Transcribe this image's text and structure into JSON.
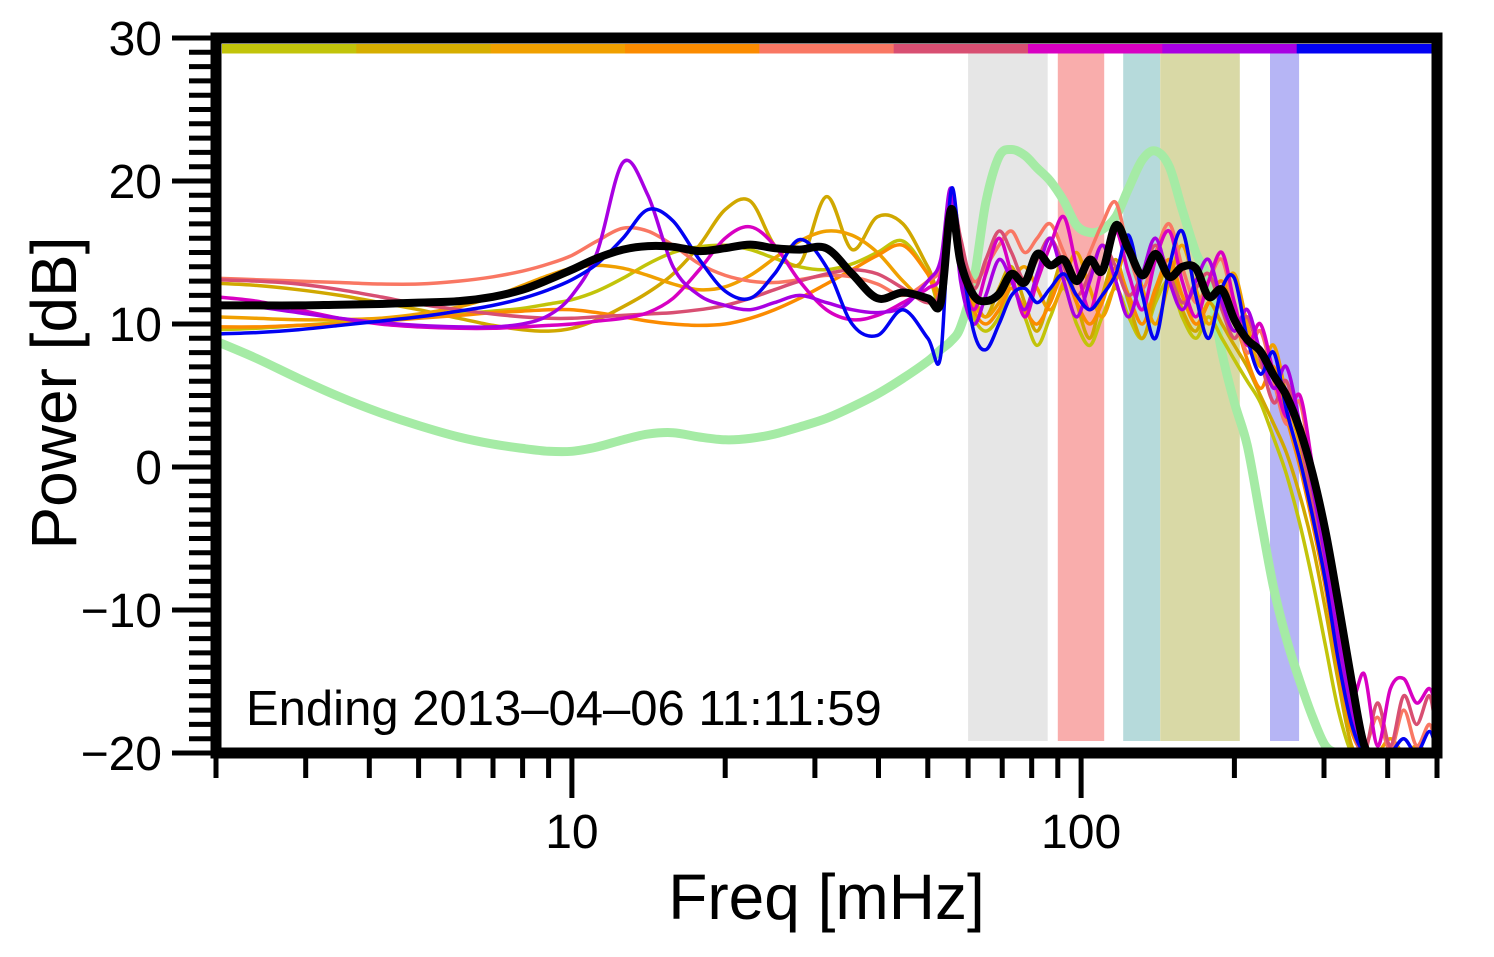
{
  "chart_data": {
    "type": "line",
    "title": "",
    "xlabel": "Freq [mHz]",
    "ylabel": "Power [dB]",
    "annotation": "Ending 2013–04–06 11:11:59",
    "x_scale": "log",
    "xlim": [
      2,
      500
    ],
    "ylim": [
      -20,
      30
    ],
    "grid": false,
    "legend": "none",
    "x_major_ticks": [
      10,
      100
    ],
    "x_major_labels": [
      "10",
      "100"
    ],
    "x_minor_ticks": [
      2,
      3,
      4,
      5,
      6,
      7,
      8,
      9,
      20,
      30,
      40,
      50,
      60,
      70,
      80,
      90,
      200,
      300,
      400,
      500
    ],
    "y_major_ticks": [
      30,
      20,
      10,
      0,
      -10,
      -20
    ],
    "y_major_labels": [
      "30",
      "20",
      "10",
      "0",
      "−10",
      "−20"
    ],
    "y_minor_step": 1,
    "top_bar_segments": [
      {
        "name": "interval-1",
        "color": "#c2c40a"
      },
      {
        "name": "interval-2",
        "color": "#d6ae00"
      },
      {
        "name": "interval-3",
        "color": "#f0a000"
      },
      {
        "name": "interval-4",
        "color": "#fb8b00"
      },
      {
        "name": "interval-5",
        "color": "#f97763"
      },
      {
        "name": "interval-6",
        "color": "#d84f72"
      },
      {
        "name": "interval-7",
        "color": "#d800c2"
      },
      {
        "name": "interval-8",
        "color": "#a800e2"
      },
      {
        "name": "interval-9",
        "color": "#0202f2"
      }
    ],
    "vertical_bands": [
      {
        "name": "gray",
        "f_range": [
          60,
          86
        ],
        "color": "#e6e6e6"
      },
      {
        "name": "pink",
        "f_range": [
          90,
          111
        ],
        "color": "#f9adac"
      },
      {
        "name": "teal",
        "f_range": [
          121,
          143
        ],
        "color": "#b6dadb"
      },
      {
        "name": "olive",
        "f_range": [
          143,
          205
        ],
        "color": "#d9d9a6"
      },
      {
        "name": "lavender",
        "f_range": [
          235,
          268
        ],
        "color": "#b6b5f5"
      }
    ],
    "x": [
      2,
      2.4,
      2.9,
      3.5,
      4.2,
      5,
      6,
      7,
      8,
      9,
      10,
      11.2,
      12.6,
      14.1,
      15.8,
      17.8,
      20,
      22.4,
      25,
      28,
      31.6,
      35.5,
      39.8,
      44.7,
      50,
      53,
      55.5,
      58,
      61.5,
      65,
      69,
      73,
      77.5,
      82,
      87,
      92.5,
      98,
      104,
      110,
      117,
      124,
      132,
      140,
      149,
      158,
      168,
      178,
      189,
      200,
      212,
      225,
      239,
      253,
      269,
      285,
      302,
      320,
      340,
      360,
      382,
      405,
      430,
      456,
      483,
      500
    ],
    "series": [
      {
        "name": "green-background",
        "color": "#a5eba5",
        "width": 9,
        "y": [
          8.8,
          7.6,
          6.2,
          4.9,
          3.8,
          2.9,
          2.1,
          1.6,
          1.3,
          1.1,
          1.1,
          1.4,
          1.9,
          2.3,
          2.4,
          2.1,
          1.9,
          2.0,
          2.3,
          2.8,
          3.4,
          4.2,
          5.1,
          6.2,
          7.4,
          8.2,
          8.8,
          9.8,
          13.0,
          18.5,
          21.7,
          22.2,
          21.8,
          20.9,
          20.0,
          18.6,
          16.9,
          16.4,
          16.6,
          17.5,
          19.5,
          21.5,
          22.1,
          21.0,
          18.0,
          15.0,
          13.0,
          8.0,
          4.5,
          1.5,
          -3.5,
          -8.5,
          -12.0,
          -15.0,
          -17.5,
          -19.5,
          -20,
          -20,
          -20,
          -20,
          -20,
          -20,
          -20,
          -20,
          -20
        ]
      },
      {
        "name": "chartreuse",
        "color": "#c2c40a",
        "width": 3.5,
        "y": [
          9.6,
          9.7,
          9.9,
          10.1,
          10.3,
          10.5,
          10.7,
          10.9,
          11.1,
          11.4,
          11.7,
          12.3,
          13.2,
          14.2,
          15.0,
          15.4,
          15.5,
          15.2,
          14.6,
          14.0,
          13.8,
          14.2,
          15.0,
          15.8,
          13.5,
          11.5,
          17.8,
          13.5,
          10.5,
          9.5,
          10.5,
          12.5,
          10.5,
          8.5,
          10.5,
          12.5,
          10.0,
          8.5,
          10.5,
          12.5,
          10.5,
          9.0,
          11.5,
          13.0,
          10.5,
          9.0,
          10.5,
          9.0,
          7.5,
          6.0,
          4.5,
          2.0,
          -0.5,
          -4.0,
          -8.0,
          -12.5,
          -17.0,
          -20,
          -20,
          -20,
          -20,
          -20,
          -20,
          -20,
          -20
        ]
      },
      {
        "name": "gold",
        "color": "#d0a800",
        "width": 3.5,
        "y": [
          12.85,
          12.7,
          12.4,
          12.0,
          11.5,
          11.0,
          10.4,
          9.9,
          9.6,
          9.5,
          9.7,
          10.3,
          11.2,
          12.2,
          13.5,
          15.5,
          18.0,
          18.6,
          15.5,
          14.2,
          18.9,
          15.2,
          17.5,
          17.0,
          14.0,
          12.5,
          18.5,
          15.0,
          12.0,
          10.5,
          12.5,
          14.0,
          11.5,
          9.5,
          12.0,
          14.5,
          11.5,
          9.0,
          12.0,
          14.5,
          11.5,
          9.0,
          12.0,
          14.0,
          11.0,
          9.5,
          11.5,
          10.0,
          8.5,
          7.0,
          5.0,
          3.0,
          1.0,
          -2.0,
          -5.5,
          -10.0,
          -15.0,
          -19.5,
          -20,
          -20,
          -20,
          -20,
          -20,
          -20,
          -20
        ]
      },
      {
        "name": "orange",
        "color": "#f0a000",
        "width": 3.5,
        "y": [
          10.5,
          10.4,
          10.3,
          10.3,
          10.4,
          10.7,
          11.2,
          11.9,
          12.7,
          13.4,
          13.9,
          14.1,
          13.9,
          13.4,
          12.8,
          12.4,
          12.6,
          13.4,
          14.6,
          15.8,
          16.5,
          16.2,
          15.0,
          13.0,
          11.5,
          12.5,
          18.0,
          14.5,
          11.5,
          10.5,
          11.5,
          13.0,
          14.0,
          12.5,
          11.0,
          13.0,
          15.0,
          12.5,
          10.5,
          13.0,
          15.5,
          12.5,
          10.0,
          13.0,
          15.5,
          12.5,
          10.0,
          12.0,
          13.5,
          10.0,
          7.0,
          8.5,
          5.0,
          1.5,
          -2.5,
          -7.0,
          -12.5,
          -17.5,
          -20,
          -20,
          -19.0,
          -20,
          -19.5,
          -20,
          -20
        ]
      },
      {
        "name": "dark-orange",
        "color": "#fb8b00",
        "width": 3.5,
        "y": [
          9.8,
          9.8,
          9.9,
          10.0,
          10.2,
          10.4,
          10.6,
          10.8,
          10.9,
          11.0,
          11.0,
          10.8,
          10.5,
          10.2,
          10.0,
          9.9,
          10.0,
          10.4,
          11.0,
          11.8,
          12.8,
          13.8,
          14.8,
          15.5,
          13.5,
          12.0,
          18.2,
          14.0,
          11.0,
          10.0,
          11.0,
          12.5,
          11.0,
          10.0,
          11.5,
          13.5,
          11.5,
          10.0,
          11.5,
          14.0,
          12.0,
          10.0,
          12.5,
          14.5,
          12.0,
          10.0,
          11.5,
          13.0,
          10.5,
          7.5,
          5.5,
          7.0,
          3.5,
          0.0,
          -4.0,
          -8.5,
          -14.0,
          -18.5,
          -20,
          -20,
          -20,
          -20,
          -20,
          -20,
          -20
        ]
      },
      {
        "name": "salmon",
        "color": "#f97763",
        "width": 3.5,
        "y": [
          13.2,
          13.1,
          13.0,
          12.9,
          12.8,
          12.8,
          13.0,
          13.3,
          13.7,
          14.2,
          14.8,
          15.8,
          16.7,
          16.5,
          15.5,
          14.2,
          13.4,
          13.0,
          12.9,
          13.1,
          13.4,
          13.3,
          12.8,
          12.0,
          13.0,
          14.0,
          18.3,
          15.5,
          13.0,
          14.0,
          15.5,
          16.5,
          15.0,
          16.0,
          17.0,
          15.0,
          13.0,
          15.0,
          17.0,
          18.5,
          15.0,
          12.5,
          15.0,
          17.0,
          14.0,
          11.5,
          13.0,
          14.5,
          11.0,
          8.0,
          9.5,
          6.0,
          3.0,
          4.5,
          -1.0,
          -6.0,
          -11.5,
          -17.0,
          -19.5,
          -17.5,
          -19.8,
          -17.0,
          -19.5,
          -18.0,
          -20
        ]
      },
      {
        "name": "rose",
        "color": "#d84f72",
        "width": 3.5,
        "y": [
          13.1,
          13.0,
          12.8,
          12.4,
          11.9,
          11.4,
          11.0,
          10.7,
          10.5,
          10.4,
          10.4,
          10.5,
          10.6,
          10.7,
          10.8,
          11.0,
          11.3,
          11.8,
          12.4,
          13.0,
          13.5,
          13.8,
          13.5,
          12.5,
          11.5,
          12.5,
          18.8,
          16.0,
          12.5,
          14.5,
          16.5,
          15.0,
          13.0,
          14.5,
          16.0,
          14.0,
          12.0,
          13.5,
          15.5,
          14.0,
          12.0,
          13.5,
          15.5,
          13.5,
          11.5,
          12.5,
          13.5,
          11.0,
          9.0,
          10.5,
          7.5,
          4.5,
          6.0,
          2.0,
          -2.5,
          -7.5,
          -13.0,
          -18.0,
          -20,
          -16.5,
          -19.5,
          -16.0,
          -18.0,
          -16.0,
          -19.0
        ]
      },
      {
        "name": "magenta",
        "color": "#d800c2",
        "width": 3.5,
        "y": [
          11.9,
          11.6,
          11.0,
          10.4,
          10.0,
          9.8,
          9.7,
          9.7,
          9.8,
          9.9,
          10.0,
          10.2,
          10.4,
          10.8,
          11.8,
          13.8,
          16.0,
          16.8,
          15.5,
          13.0,
          11.0,
          10.3,
          10.6,
          11.5,
          12.5,
          13.5,
          19.0,
          14.0,
          11.0,
          13.5,
          16.0,
          13.5,
          10.5,
          13.0,
          15.5,
          17.5,
          14.0,
          11.0,
          14.0,
          16.5,
          13.5,
          11.0,
          14.5,
          16.5,
          13.0,
          10.5,
          13.0,
          15.0,
          11.5,
          8.5,
          10.0,
          6.5,
          3.5,
          5.0,
          0.0,
          -5.0,
          -10.5,
          -16.0,
          -14.5,
          -19.5,
          -15.5,
          -14.8,
          -16.5,
          -15.5,
          -17.0
        ]
      },
      {
        "name": "purple",
        "color": "#a800e2",
        "width": 3.5,
        "y": [
          11.5,
          11.2,
          10.8,
          10.4,
          10.1,
          9.9,
          9.8,
          9.8,
          10.0,
          10.6,
          12.0,
          15.0,
          21.3,
          19.0,
          14.0,
          12.0,
          11.3,
          11.0,
          11.5,
          12.0,
          11.5,
          11.0,
          10.8,
          11.2,
          13.0,
          14.5,
          19.5,
          13.0,
          10.0,
          12.0,
          14.5,
          13.0,
          11.0,
          13.5,
          16.0,
          13.0,
          10.5,
          13.0,
          15.5,
          13.0,
          10.5,
          13.5,
          16.0,
          13.0,
          11.0,
          13.0,
          14.5,
          11.5,
          9.5,
          11.0,
          8.0,
          5.5,
          7.0,
          3.0,
          -1.5,
          -6.5,
          -12.0,
          -17.0,
          -20,
          -20,
          -20,
          -20,
          -20,
          -20,
          -20
        ]
      },
      {
        "name": "blue",
        "color": "#0202f2",
        "width": 3.5,
        "y": [
          9.3,
          9.4,
          9.6,
          9.9,
          10.2,
          10.5,
          10.9,
          11.3,
          11.8,
          12.4,
          13.1,
          14.2,
          16.0,
          18.0,
          17.2,
          14.5,
          12.3,
          11.8,
          13.5,
          15.9,
          14.0,
          10.0,
          9.2,
          11.0,
          9.0,
          7.8,
          19.3,
          15.0,
          9.5,
          8.2,
          10.0,
          12.0,
          12.5,
          11.5,
          12.5,
          13.5,
          12.0,
          11.0,
          12.0,
          13.5,
          16.2,
          12.0,
          9.0,
          14.0,
          16.5,
          12.0,
          9.0,
          12.5,
          13.2,
          9.0,
          6.5,
          8.0,
          4.0,
          0.5,
          -3.5,
          -8.0,
          -13.5,
          -18.0,
          -20,
          -20,
          -20,
          -19.0,
          -20,
          -18.5,
          -20
        ]
      },
      {
        "name": "black-mean",
        "color": "#000000",
        "width": 8,
        "y": [
          11.3,
          11.3,
          11.3,
          11.35,
          11.4,
          11.5,
          11.6,
          11.9,
          12.4,
          13.1,
          13.8,
          14.6,
          15.2,
          15.45,
          15.4,
          15.1,
          15.3,
          15.55,
          15.3,
          15.2,
          15.3,
          13.5,
          11.8,
          12.2,
          11.8,
          11.5,
          18.0,
          14.3,
          12.0,
          11.6,
          12.1,
          13.5,
          12.9,
          14.9,
          14.1,
          14.5,
          13.0,
          14.5,
          13.7,
          16.9,
          15.2,
          13.4,
          14.9,
          13.3,
          14.0,
          13.9,
          11.9,
          12.4,
          10.3,
          8.9,
          8.1,
          6.4,
          5.0,
          2.6,
          -0.5,
          -4.5,
          -9.5,
          -15.0,
          -19.5,
          -20,
          -20,
          -20,
          -20,
          -20,
          -20
        ]
      }
    ]
  }
}
